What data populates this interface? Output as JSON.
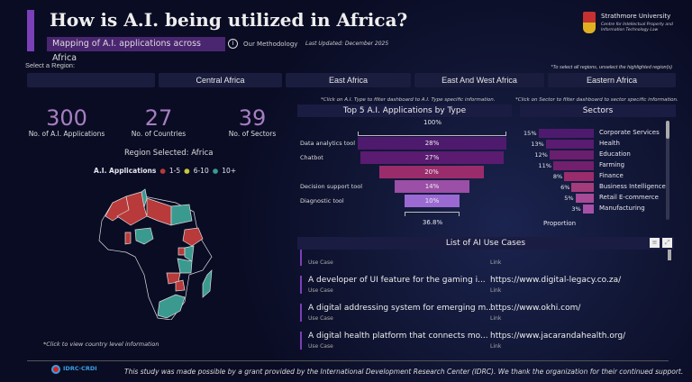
{
  "header": {
    "title": "How is A.I. being utilized in Africa?",
    "subtitle": "Mapping of A.I. applications across Africa",
    "methodology": "Our Methodology",
    "last_updated": "Last Updated: December 2025",
    "logo": {
      "name": "Strathmore University",
      "line1": "Centre for Intellectual Property and",
      "line2": "Information Technology Law"
    }
  },
  "region": {
    "label": "Select a Region:",
    "note": "*To select all regions, unselect the highlighted region(s)",
    "buttons": [
      "",
      "Central Africa",
      "East Africa",
      "East And West Africa",
      "Eastern Africa"
    ]
  },
  "kpis": [
    {
      "value": "300",
      "label": "No. of A.I. Applications"
    },
    {
      "value": "27",
      "label": "No. of Countries"
    },
    {
      "value": "39",
      "label": "No. of Sectors"
    }
  ],
  "map": {
    "region_selected": "Region Selected: Africa",
    "legend_title": "A.I. Applications",
    "legend": [
      {
        "label": "1-5",
        "color": "#b83a3a"
      },
      {
        "label": "6-10",
        "color": "#c8c83a"
      },
      {
        "label": "10+",
        "color": "#3a9a90"
      }
    ],
    "note": "*Click to view country level information"
  },
  "funnel": {
    "note": "*Click on A.I. Type to filter dashboard to A.I. Type specific information.",
    "title": "Top 5 A.I. Applications by Type",
    "top_label": "100%",
    "bottom_label": "36.8%",
    "items": [
      {
        "label": "Data analytics tool",
        "value": "28%",
        "color": "#4e1a6e"
      },
      {
        "label": "Chatbot",
        "value": "27%",
        "color": "#5a1b70"
      },
      {
        "label": "",
        "value": "20%",
        "color": "#9a2c6c"
      },
      {
        "label": "Decision support tool",
        "value": "14%",
        "color": "#9b4fa6"
      },
      {
        "label": "Diagnostic tool",
        "value": "10%",
        "color": "#9a6ad2"
      }
    ]
  },
  "sectors": {
    "note": "*Click on Sector to filter dashboard to sector specific information.",
    "title": "Sectors",
    "axis_label": "Proportion",
    "items": [
      {
        "label": "Corporate Services",
        "value": 15,
        "text": "15%"
      },
      {
        "label": "Health",
        "value": 13,
        "text": "13%"
      },
      {
        "label": "Education",
        "value": 12,
        "text": "12%"
      },
      {
        "label": "Farming",
        "value": 11,
        "text": "11%"
      },
      {
        "label": "Finance",
        "value": 8,
        "text": "8%"
      },
      {
        "label": "Business Intelligence",
        "value": 6,
        "text": "6%"
      },
      {
        "label": "Retail E-commerce",
        "value": 5,
        "text": "5%"
      },
      {
        "label": "Manufacturing",
        "value": 3,
        "text": "3%"
      }
    ]
  },
  "use_cases": {
    "title": "List of AI Use Cases",
    "col_use_case": "Use Case",
    "col_link": "Link",
    "rows": [
      {
        "use_case": "A developer of UI feature for the gaming i...",
        "link": "https://www.digital-legacy.co.za/"
      },
      {
        "use_case": "A digital addressing system for emerging m...",
        "link": "https://www.okhi.com/"
      },
      {
        "use_case": "A digital health platform that connects mo...",
        "link": "https://www.jacarandahealth.org/"
      }
    ]
  },
  "footer": {
    "logo": "IDRC·CRDI",
    "text": "This study was made possible by a grant provided by the International Development Research Center (IDRC). We thank the organization for their continued support."
  }
}
